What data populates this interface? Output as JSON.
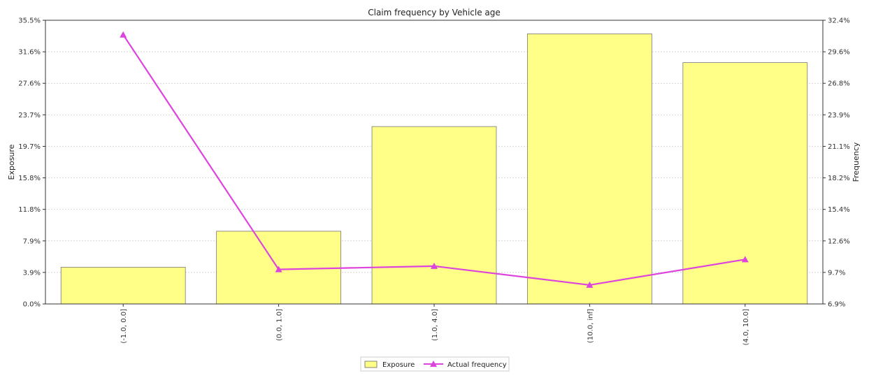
{
  "chart_data": {
    "type": "bar",
    "title": "Claim frequency by Vehicle age",
    "categories": [
      "(-1.0, 0.0]",
      "(0.0, 1.0]",
      "(1.0, 4.0]",
      "(10.0, inf]",
      "(4.0, 10.0]"
    ],
    "ylabel": "Exposure",
    "y2label": "Frequency",
    "ylim": [
      0,
      35.5
    ],
    "y2lim": [
      6.9,
      32.4
    ],
    "yticks": [
      "0.0%",
      "3.9%",
      "7.9%",
      "11.8%",
      "15.8%",
      "19.7%",
      "23.7%",
      "27.6%",
      "31.6%",
      "35.5%"
    ],
    "y2ticks": [
      "6.9%",
      "9.7%",
      "12.6%",
      "15.4%",
      "18.2%",
      "21.1%",
      "23.9%",
      "26.8%",
      "29.6%",
      "32.4%"
    ],
    "grid": true,
    "legend_position": "bottom-center",
    "series": [
      {
        "name": "Exposure",
        "kind": "bar",
        "axis": "left",
        "color": "#ffff88",
        "values": [
          4.6,
          9.1,
          22.2,
          33.8,
          30.2
        ]
      },
      {
        "name": "Actual frequency",
        "kind": "line",
        "axis": "right",
        "color": "#dd44dd",
        "values": [
          31.1,
          10.0,
          10.3,
          8.6,
          10.9
        ]
      }
    ]
  }
}
